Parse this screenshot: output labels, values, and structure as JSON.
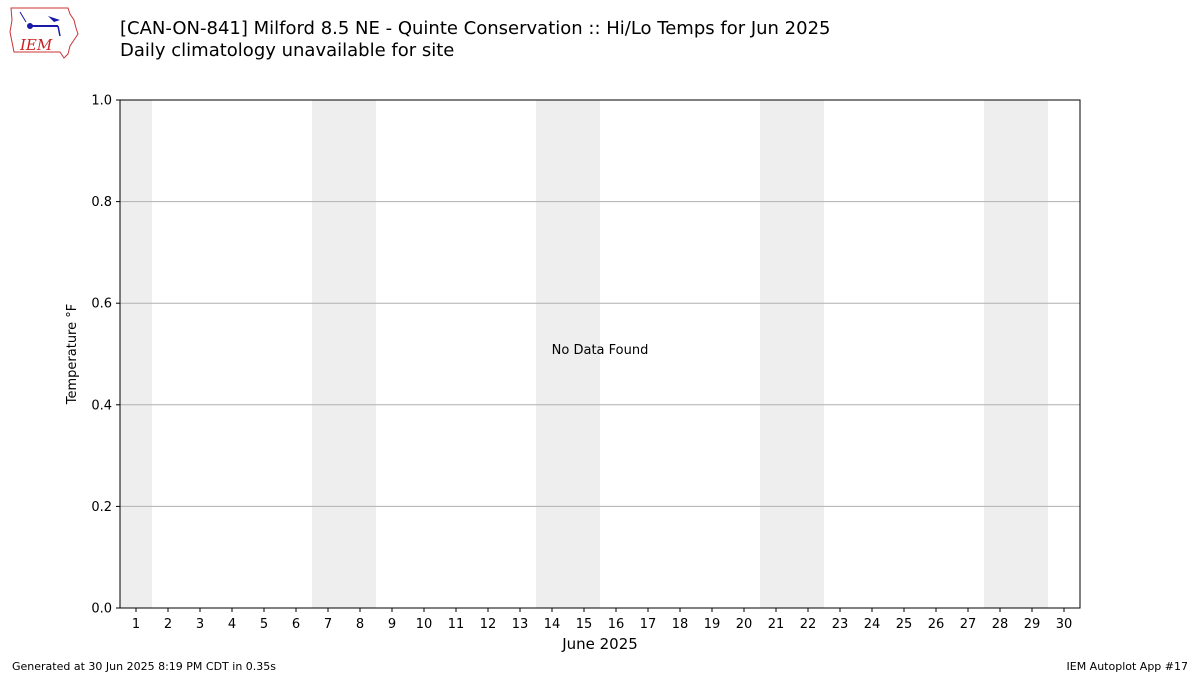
{
  "header": {
    "title": "[CAN-ON-841] Milford 8.5 NE - Quinte Conservation :: Hi/Lo Temps for Jun 2025",
    "subtitle": "Daily climatology unavailable for site",
    "logo_text": "IEM"
  },
  "chart_data": {
    "type": "bar",
    "categories": [
      "1",
      "2",
      "3",
      "4",
      "5",
      "6",
      "7",
      "8",
      "9",
      "10",
      "11",
      "12",
      "13",
      "14",
      "15",
      "16",
      "17",
      "18",
      "19",
      "20",
      "21",
      "22",
      "23",
      "24",
      "25",
      "26",
      "27",
      "28",
      "29",
      "30"
    ],
    "series": [],
    "weekend_days": [
      1,
      7,
      8,
      14,
      15,
      21,
      22,
      28,
      29
    ],
    "xlabel": "June 2025",
    "ylabel": "Temperature °F",
    "ylim": [
      0,
      1
    ],
    "yticks": [
      "0.0",
      "0.2",
      "0.4",
      "0.6",
      "0.8",
      "1.0"
    ],
    "grid": "y",
    "annotation": "No Data Found",
    "colors": {
      "weekend_band": "#eeeeee",
      "grid": "#b0b0b0"
    }
  },
  "footer": {
    "left": "Generated at 30 Jun 2025 8:19 PM CDT in 0.35s",
    "right": "IEM Autoplot App #17"
  }
}
